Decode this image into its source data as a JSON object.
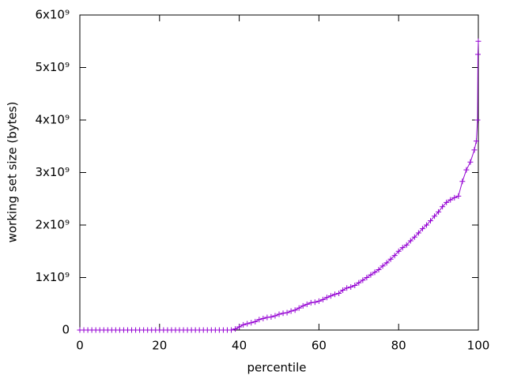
{
  "chart_data": {
    "type": "line",
    "xlabel": "percentile",
    "ylabel": "working set size (bytes)",
    "color": "#9400d3",
    "x": [
      0,
      1,
      2,
      3,
      4,
      5,
      6,
      7,
      8,
      9,
      10,
      11,
      12,
      13,
      14,
      15,
      16,
      17,
      18,
      19,
      20,
      21,
      22,
      23,
      24,
      25,
      26,
      27,
      28,
      29,
      30,
      31,
      32,
      33,
      34,
      35,
      36,
      37,
      38,
      39,
      40,
      41,
      42,
      43,
      44,
      45,
      46,
      47,
      48,
      49,
      50,
      51,
      52,
      53,
      54,
      55,
      56,
      57,
      58,
      59,
      60,
      61,
      62,
      63,
      64,
      65,
      66,
      67,
      68,
      69,
      70,
      71,
      72,
      73,
      74,
      75,
      76,
      77,
      78,
      79,
      80,
      81,
      82,
      83,
      84,
      85,
      86,
      87,
      88,
      89,
      90,
      91,
      92,
      93,
      94,
      95,
      96,
      97,
      98,
      99,
      99.5,
      99.8,
      99.9,
      100
    ],
    "values": [
      0,
      0,
      0,
      0,
      0,
      0,
      0,
      0,
      0,
      0,
      0,
      0,
      0,
      0,
      0,
      0,
      0,
      0,
      0,
      0,
      0,
      0,
      0,
      0,
      0,
      0,
      0,
      0,
      0,
      0,
      0,
      0,
      0,
      0,
      0,
      0,
      0,
      0,
      0,
      20000000,
      60000000,
      100000000,
      120000000,
      140000000,
      160000000,
      200000000,
      220000000,
      240000000,
      250000000,
      270000000,
      300000000,
      320000000,
      330000000,
      360000000,
      380000000,
      420000000,
      460000000,
      490000000,
      520000000,
      530000000,
      550000000,
      580000000,
      620000000,
      650000000,
      680000000,
      700000000,
      760000000,
      800000000,
      820000000,
      850000000,
      900000000,
      950000000,
      1000000000,
      1050000000,
      1100000000,
      1150000000,
      1220000000,
      1280000000,
      1350000000,
      1420000000,
      1500000000,
      1570000000,
      1620000000,
      1700000000,
      1770000000,
      1850000000,
      1930000000,
      2000000000,
      2080000000,
      2170000000,
      2250000000,
      2350000000,
      2430000000,
      2480000000,
      2520000000,
      2550000000,
      2830000000,
      3050000000,
      3200000000,
      3430000000,
      3600000000,
      4000000000,
      5250000000,
      5500000000
    ],
    "xlim": [
      0,
      100
    ],
    "xticks": [
      0,
      20,
      40,
      60,
      80,
      100
    ],
    "ylim": [
      0,
      6000000000
    ],
    "yticks": [
      0,
      {
        "value": 1000000000,
        "label": "1x10⁹"
      },
      {
        "value": 2000000000,
        "label": "2x10⁹"
      },
      {
        "value": 3000000000,
        "label": "3x10⁹"
      },
      {
        "value": 4000000000,
        "label": "4x10⁹"
      },
      {
        "value": 5000000000,
        "label": "5x10⁹"
      },
      {
        "value": 6000000000,
        "label": "6x10⁹"
      }
    ]
  }
}
